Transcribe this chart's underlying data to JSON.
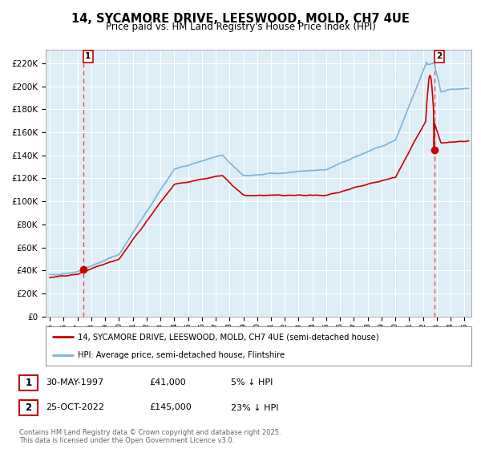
{
  "title": "14, SYCAMORE DRIVE, LEESWOOD, MOLD, CH7 4UE",
  "subtitle": "Price paid vs. HM Land Registry's House Price Index (HPI)",
  "yticks": [
    0,
    20000,
    40000,
    60000,
    80000,
    100000,
    120000,
    140000,
    160000,
    180000,
    200000,
    220000
  ],
  "ytick_labels": [
    "£0",
    "£20K",
    "£40K",
    "£60K",
    "£80K",
    "£100K",
    "£120K",
    "£140K",
    "£160K",
    "£180K",
    "£200K",
    "£220K"
  ],
  "xlim_start": 1994.7,
  "xlim_end": 2025.5,
  "ylim": [
    0,
    232000
  ],
  "legend1_label": "14, SYCAMORE DRIVE, LEESWOOD, MOLD, CH7 4UE (semi-detached house)",
  "legend2_label": "HPI: Average price, semi-detached house, Flintshire",
  "point1_date": "30-MAY-1997",
  "point1_price": "£41,000",
  "point1_pct": "5% ↓ HPI",
  "point2_date": "25-OCT-2022",
  "point2_price": "£145,000",
  "point2_pct": "23% ↓ HPI",
  "footer": "Contains HM Land Registry data © Crown copyright and database right 2025.\nThis data is licensed under the Open Government Licence v3.0.",
  "sale1_year": 1997.41,
  "sale1_price": 41000,
  "sale2_year": 2022.81,
  "sale2_price": 145000,
  "hpi_color": "#7ab4d8",
  "price_color": "#CC0000",
  "vline_color": "#FF4444",
  "background_color": "#ddeef7",
  "grid_color": "#ffffff"
}
